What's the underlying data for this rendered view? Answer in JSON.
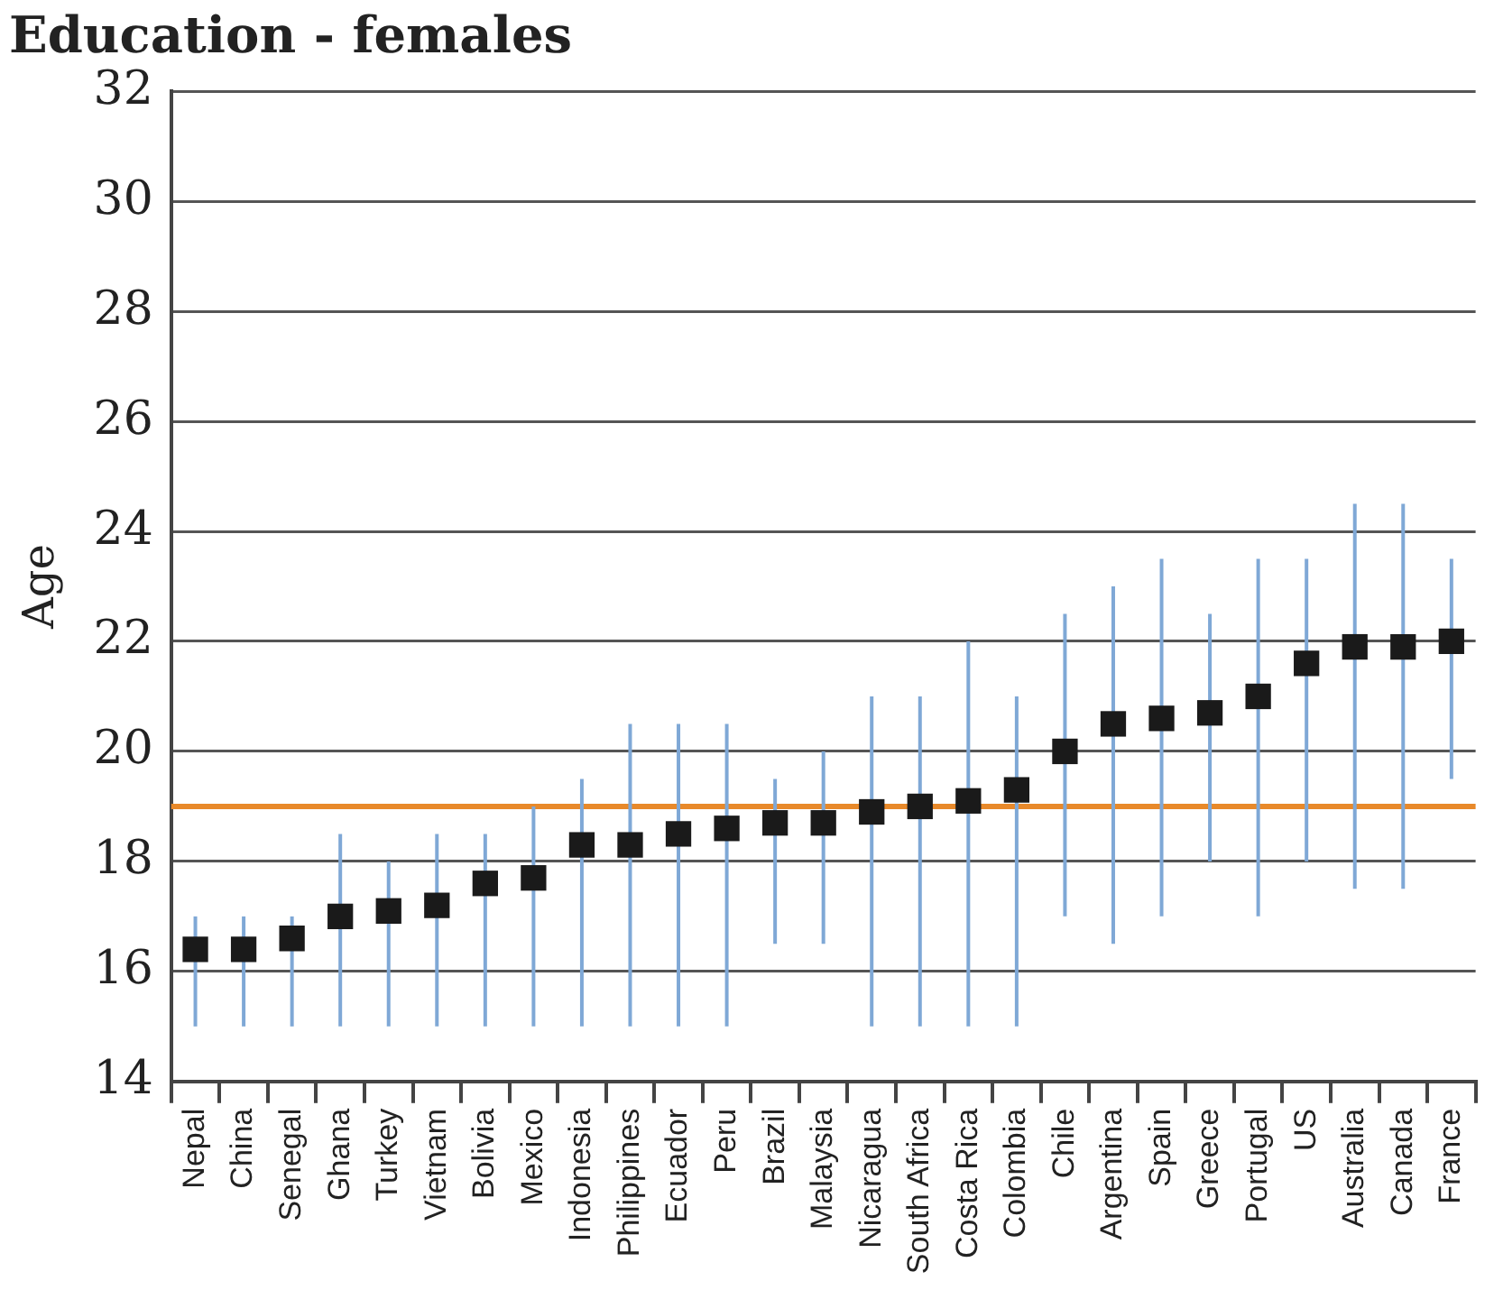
{
  "chart_data": {
    "type": "scatter",
    "title": "Education - females",
    "ylabel": "Age",
    "categories": [
      "Nepal",
      "China",
      "Senegal",
      "Ghana",
      "Turkey",
      "Vietnam",
      "Bolivia",
      "Mexico",
      "Indonesia",
      "Philippines",
      "Ecuador",
      "Peru",
      "Brazil",
      "Malaysia",
      "Nicaragua",
      "South Africa",
      "Costa Rica",
      "Colombia",
      "Chile",
      "Argentina",
      "Spain",
      "Greece",
      "Portugal",
      "US",
      "Australia",
      "Canada",
      "France"
    ],
    "series": [
      {
        "color": "#1a1a1a",
        "values": [
          16.4,
          16.4,
          16.6,
          17.0,
          17.1,
          17.2,
          17.6,
          17.7,
          18.3,
          18.3,
          18.5,
          18.6,
          18.7,
          18.7,
          18.9,
          19.0,
          19.1,
          19.3,
          20.0,
          20.5,
          20.6,
          20.7,
          21.0,
          21.6,
          21.9,
          21.9,
          22.0
        ],
        "errors": [
          [
            15,
            17
          ],
          [
            15,
            17
          ],
          [
            15,
            17
          ],
          [
            15,
            18.5
          ],
          [
            15,
            18
          ],
          [
            15,
            18.5
          ],
          [
            15,
            18.5
          ],
          [
            15,
            19
          ],
          [
            15,
            19.5
          ],
          [
            15,
            20.5
          ],
          [
            15,
            20.5
          ],
          [
            15,
            20.5
          ],
          [
            16.5,
            19.5
          ],
          [
            16.5,
            20
          ],
          [
            15,
            21
          ],
          [
            15,
            21
          ],
          [
            15,
            22
          ],
          [
            15,
            21
          ],
          [
            17,
            22.5
          ],
          [
            16.5,
            23
          ],
          [
            17,
            23.5
          ],
          [
            18,
            22.5
          ],
          [
            17,
            23.5
          ],
          [
            18,
            23.5
          ],
          [
            17.5,
            24.5
          ],
          [
            17.5,
            24.5
          ],
          [
            19.5,
            23.5
          ]
        ]
      }
    ],
    "ylim": [
      14,
      32
    ],
    "yticks": [
      14,
      16,
      18,
      20,
      22,
      24,
      26,
      28,
      30,
      32
    ],
    "grid": "y",
    "marker": "square",
    "ref_lines": [
      {
        "axis": "y",
        "value": 19,
        "color": "#e8892a"
      }
    ]
  }
}
